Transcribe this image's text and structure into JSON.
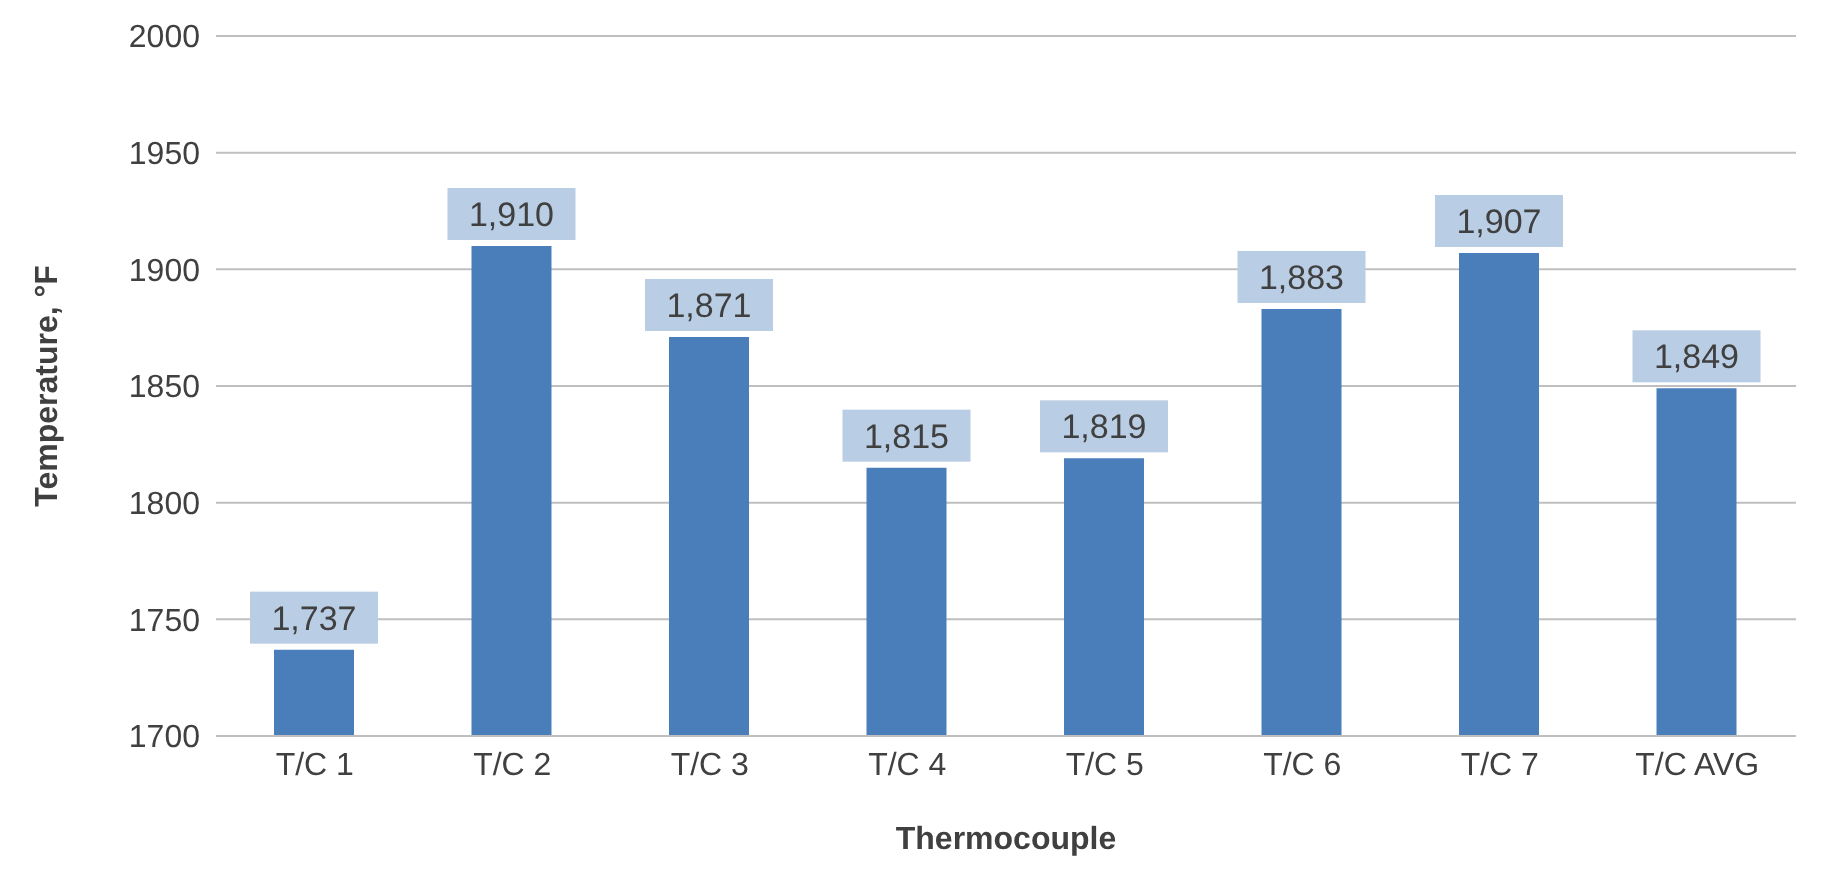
{
  "chart_data": {
    "type": "bar",
    "xlabel": "Thermocouple",
    "ylabel": "Temperature, °F",
    "categories": [
      "T/C 1",
      "T/C 2",
      "T/C 3",
      "T/C 4",
      "T/C 5",
      "T/C 6",
      "T/C 7",
      "T/C AVG"
    ],
    "values": [
      1737,
      1910,
      1871,
      1815,
      1819,
      1883,
      1907,
      1849
    ],
    "value_labels": [
      "1,737",
      "1,910",
      "1,871",
      "1,815",
      "1,819",
      "1,883",
      "1,907",
      "1,849"
    ],
    "color": "#4a7ebb",
    "ylim": [
      1700,
      2000
    ],
    "yticks": [
      1700,
      1750,
      1800,
      1850,
      1900,
      1950,
      2000
    ],
    "grid": "y"
  }
}
